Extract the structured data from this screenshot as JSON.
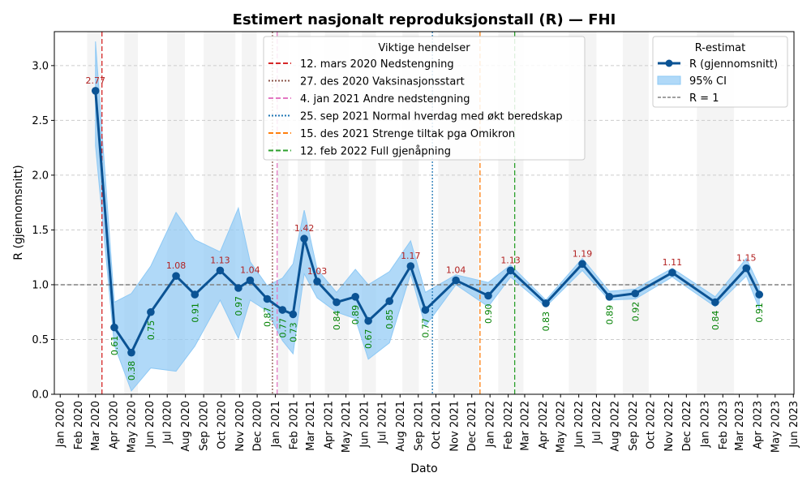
{
  "chart_data": {
    "type": "line",
    "title": "Estimert nasjonalt reproduksjonstall (R) — FHI",
    "xlabel": "Dato",
    "ylabel": "R (gjennomsnitt)",
    "xlim": [
      "2019-12-22",
      "2023-06-02"
    ],
    "ylim": [
      0,
      3.31
    ],
    "yticks": [
      "0.0",
      "0.5",
      "1.0",
      "1.5",
      "2.0",
      "2.5",
      "3.0"
    ],
    "xticks": [
      "Jan 2020",
      "Feb 2020",
      "Mar 2020",
      "Apr 2020",
      "May 2020",
      "Jun 2020",
      "Jul 2020",
      "Aug 2020",
      "Sep 2020",
      "Oct 2020",
      "Nov 2020",
      "Dec 2020",
      "Jan 2021",
      "Feb 2021",
      "Mar 2021",
      "Apr 2021",
      "May 2021",
      "Jun 2021",
      "Jul 2021",
      "Aug 2021",
      "Sep 2021",
      "Oct 2021",
      "Nov 2021",
      "Dec 2021",
      "Jan 2022",
      "Feb 2022",
      "Mar 2022",
      "Apr 2022",
      "May 2022",
      "Jun 2022",
      "Jul 2022",
      "Aug 2022",
      "Sep 2022",
      "Oct 2022",
      "Nov 2022",
      "Dec 2022",
      "Jan 2023",
      "Feb 2023",
      "Mar 2023",
      "Apr 2023",
      "May 2023",
      "Jun 2023"
    ],
    "grid": "horizontal dashed",
    "series": [
      {
        "name": "R (gjennomsnitt)",
        "color": "#0b5394",
        "points": [
          {
            "date": "2020-03-01",
            "r": 2.77,
            "lo": 2.27,
            "hi": 3.22
          },
          {
            "date": "2020-04-02",
            "r": 0.61,
            "lo": 0.45,
            "hi": 0.84
          },
          {
            "date": "2020-05-01",
            "r": 0.38,
            "lo": 0.03,
            "hi": 0.92
          },
          {
            "date": "2020-06-03",
            "r": 0.75,
            "lo": 0.24,
            "hi": 1.17
          },
          {
            "date": "2020-07-16",
            "r": 1.08,
            "lo": 0.21,
            "hi": 1.66
          },
          {
            "date": "2020-08-17",
            "r": 0.91,
            "lo": 0.44,
            "hi": 1.41
          },
          {
            "date": "2020-09-29",
            "r": 1.13,
            "lo": 0.86,
            "hi": 1.3
          },
          {
            "date": "2020-10-30",
            "r": 0.97,
            "lo": 0.51,
            "hi": 1.7
          },
          {
            "date": "2020-11-19",
            "r": 1.04,
            "lo": 0.86,
            "hi": 1.21
          },
          {
            "date": "2020-12-18",
            "r": 0.87,
            "lo": 0.76,
            "hi": 0.99
          },
          {
            "date": "2021-01-13",
            "r": 0.77,
            "lo": 0.49,
            "hi": 1.06
          },
          {
            "date": "2021-01-31",
            "r": 0.73,
            "lo": 0.37,
            "hi": 1.19
          },
          {
            "date": "2021-02-19",
            "r": 1.42,
            "lo": 1.1,
            "hi": 1.68
          },
          {
            "date": "2021-03-13",
            "r": 1.03,
            "lo": 0.88,
            "hi": 1.14
          },
          {
            "date": "2021-04-15",
            "r": 0.84,
            "lo": 0.75,
            "hi": 0.93
          },
          {
            "date": "2021-05-17",
            "r": 0.89,
            "lo": 0.69,
            "hi": 1.14
          },
          {
            "date": "2021-06-08",
            "r": 0.67,
            "lo": 0.32,
            "hi": 1.0
          },
          {
            "date": "2021-07-14",
            "r": 0.85,
            "lo": 0.47,
            "hi": 1.12
          },
          {
            "date": "2021-08-19",
            "r": 1.17,
            "lo": 1.1,
            "hi": 1.4
          },
          {
            "date": "2021-09-13",
            "r": 0.77,
            "lo": 0.62,
            "hi": 0.93
          },
          {
            "date": "2021-11-04",
            "r": 1.04,
            "lo": 1.0,
            "hi": 1.09
          },
          {
            "date": "2021-12-29",
            "r": 0.9,
            "lo": 0.8,
            "hi": 1.02
          },
          {
            "date": "2022-02-05",
            "r": 1.13,
            "lo": 1.07,
            "hi": 1.18
          },
          {
            "date": "2022-04-06",
            "r": 0.83,
            "lo": 0.8,
            "hi": 0.86
          },
          {
            "date": "2022-06-07",
            "r": 1.19,
            "lo": 1.13,
            "hi": 1.24
          },
          {
            "date": "2022-07-23",
            "r": 0.89,
            "lo": 0.86,
            "hi": 0.94
          },
          {
            "date": "2022-09-05",
            "r": 0.92,
            "lo": 0.87,
            "hi": 0.96
          },
          {
            "date": "2022-11-07",
            "r": 1.11,
            "lo": 1.07,
            "hi": 1.15
          },
          {
            "date": "2023-01-19",
            "r": 0.84,
            "lo": 0.8,
            "hi": 0.89
          },
          {
            "date": "2023-03-13",
            "r": 1.15,
            "lo": 1.08,
            "hi": 1.24
          },
          {
            "date": "2023-04-04",
            "r": 0.91,
            "lo": 0.78,
            "hi": 0.99
          }
        ]
      }
    ],
    "ci_label": "95% CI",
    "ci_color": "#8ec9f5",
    "reference_line": {
      "label": "R = 1",
      "value": 1.0,
      "color": "#808080"
    },
    "label_colors": {
      "above": "#b22222",
      "below": "#008000"
    },
    "shaded_periods": [
      [
        "2020-02-16",
        "2020-03-11"
      ],
      [
        "2020-04-19",
        "2020-05-12"
      ],
      [
        "2020-07-01",
        "2020-07-31"
      ],
      [
        "2020-09-01",
        "2020-10-25"
      ],
      [
        "2020-11-05",
        "2020-11-30"
      ],
      [
        "2021-01-05",
        "2021-01-23"
      ],
      [
        "2021-02-08",
        "2021-03-02"
      ],
      [
        "2021-03-26",
        "2021-05-06"
      ],
      [
        "2021-05-28",
        "2021-06-21"
      ],
      [
        "2021-08-05",
        "2021-09-02"
      ],
      [
        "2021-10-05",
        "2021-12-13"
      ],
      [
        "2022-01-15",
        "2022-02-27"
      ],
      [
        "2022-05-15",
        "2022-07-01"
      ],
      [
        "2022-08-15",
        "2022-09-28"
      ],
      [
        "2022-12-19",
        "2023-02-20"
      ]
    ],
    "events_legend_title": "Viktige hendelser",
    "events": [
      {
        "date": "2020-03-12",
        "label": "12. mars 2020 Nedstengning",
        "color": "#d62728",
        "dash": "dashed"
      },
      {
        "date": "2020-12-27",
        "label": "27. des 2020 Vaksinasjonsstart",
        "color": "#8c564b",
        "dash": "dotted"
      },
      {
        "date": "2021-01-04",
        "label": "4. jan 2021 Andre nedstengning",
        "color": "#e377c2",
        "dash": "dashed"
      },
      {
        "date": "2021-09-25",
        "label": "25. sep 2021 Normal hverdag med økt beredskap",
        "color": "#1f77b4",
        "dash": "dotted"
      },
      {
        "date": "2021-12-15",
        "label": "15. des 2021 Strenge tiltak pga Omikron",
        "color": "#ff7f0e",
        "dash": "dashed"
      },
      {
        "date": "2022-02-12",
        "label": "12. feb 2022 Full gjenåpning",
        "color": "#2ca02c",
        "dash": "dashed"
      }
    ],
    "estimate_legend_title": "R-estimat",
    "legend_placement": [
      "top-center",
      "top-right"
    ]
  }
}
